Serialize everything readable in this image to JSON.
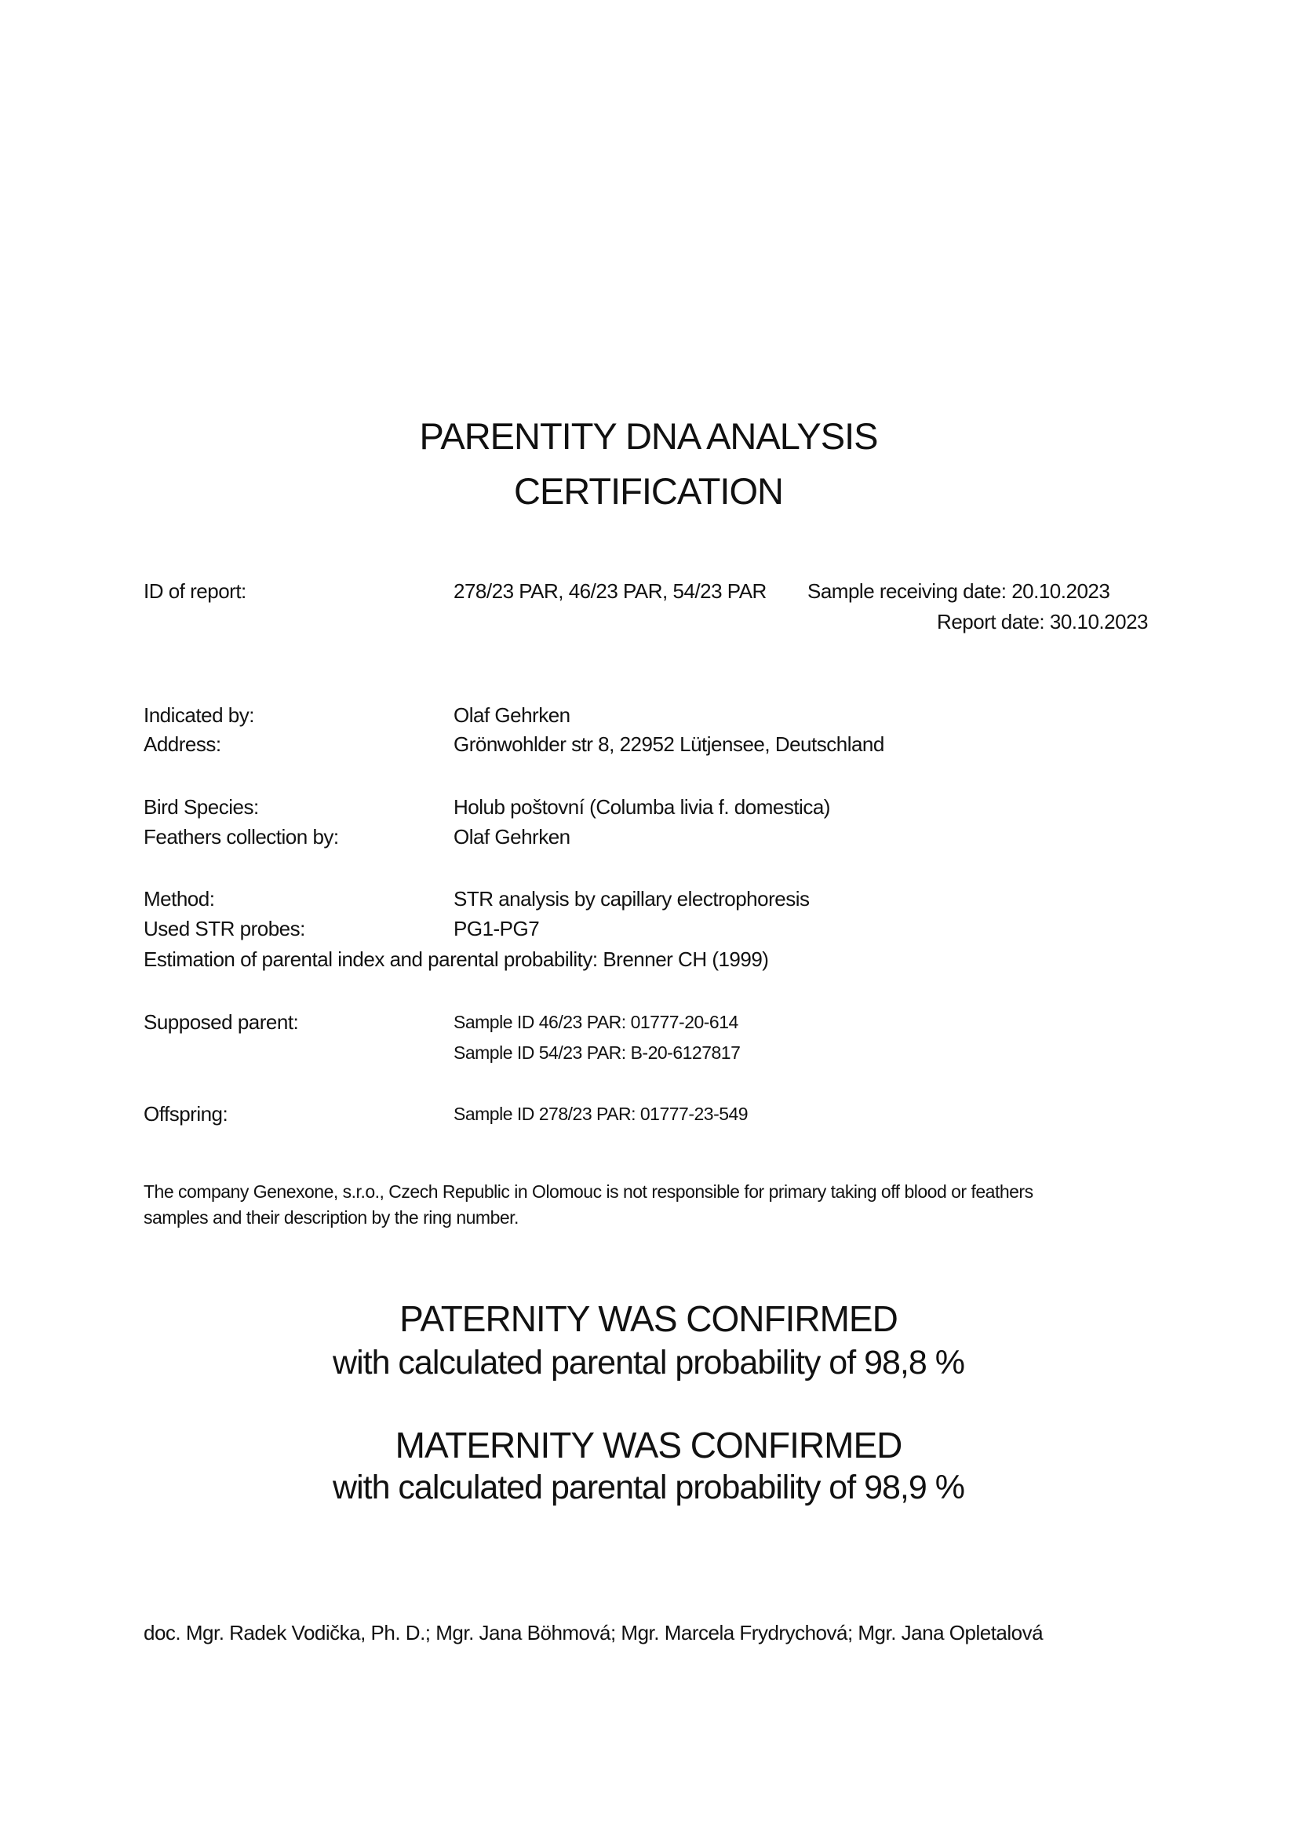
{
  "title": {
    "line1": "PARENTITY DNA ANALYSIS",
    "line2": "CERTIFICATION"
  },
  "report": {
    "id_label": "ID of report:",
    "id_value": "278/23 PAR, 46/23 PAR, 54/23 PAR",
    "receiving_date": "Sample receiving date: 20.10.2023",
    "report_date": "Report date: 30.10.2023"
  },
  "fields": {
    "indicated_by_label": "Indicated by:",
    "indicated_by": "Olaf Gehrken",
    "address_label": "Address:",
    "address": "Grönwohlder str 8, 22952 Lütjensee, Deutschland",
    "species_label": "Bird Species:",
    "species": "Holub poštovní (Columba livia f. domestica)",
    "collection_label": "Feathers collection by:",
    "collection": "Olaf Gehrken",
    "method_label": "Method:",
    "method": "STR analysis by capillary electrophoresis",
    "probes_label": "Used STR probes:",
    "probes": "PG1-PG7",
    "estimation": "Estimation of parental index and parental probability: Brenner CH (1999)",
    "parent_label": "Supposed parent:",
    "parent_1": "Sample ID 46/23 PAR: 01777-20-614",
    "parent_2": "Sample ID 54/23 PAR: B-20-6127817",
    "offspring_label": "Offspring:",
    "offspring": "Sample ID 278/23 PAR: 01777-23-549"
  },
  "disclaimer": {
    "line1": "The company Genexone, s.r.o., Czech Republic in Olomouc is not responsible for primary taking off blood or feathers",
    "line2": "samples and their description by the ring number."
  },
  "results": {
    "paternity": "PATERNITY WAS CONFIRMED",
    "paternity_prob": "with calculated parental probability of 98,8 %",
    "maternity": "MATERNITY WAS CONFIRMED",
    "maternity_prob": "with calculated parental probability of 98,9 %"
  },
  "signatories": "doc. Mgr. Radek Vodička, Ph. D.; Mgr. Jana Böhmová; Mgr. Marcela Frydrychová; Mgr. Jana Opletalová"
}
